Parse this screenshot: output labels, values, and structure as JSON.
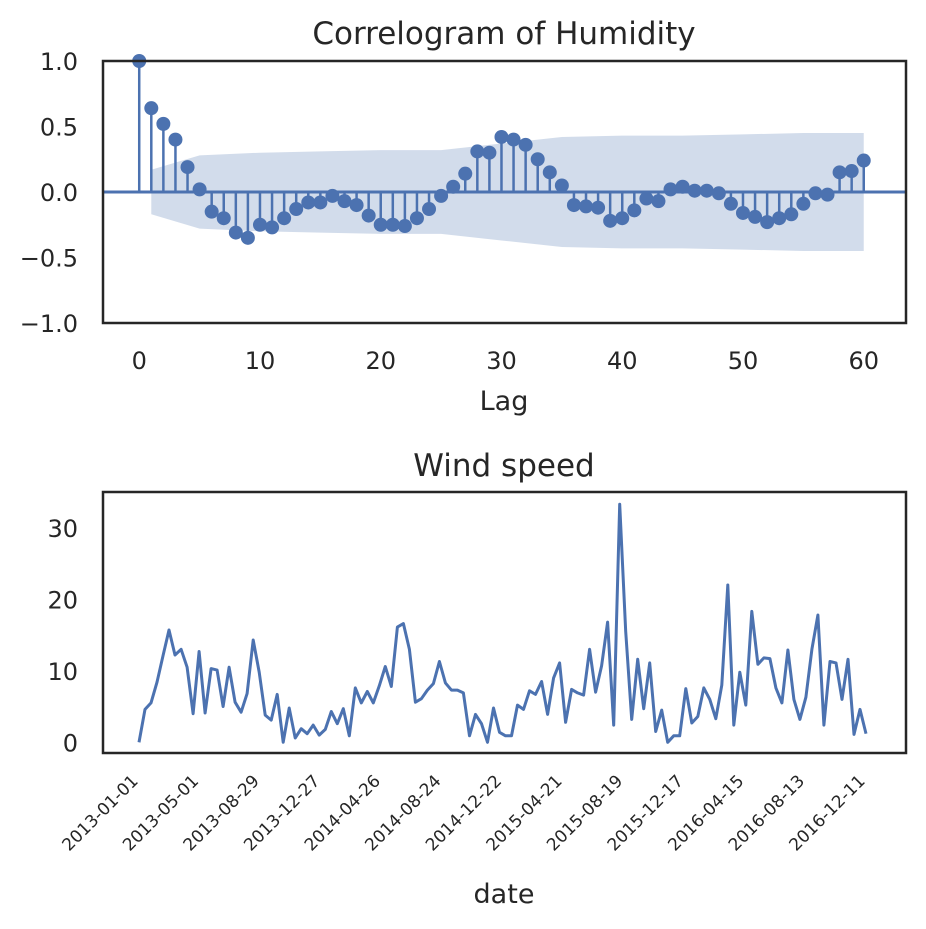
{
  "chart_data": [
    {
      "type": "stem",
      "title": "Correlogram of Humidity",
      "xlabel": "Lag",
      "ylabel": "",
      "xlim": [
        -3,
        63.5
      ],
      "ylim": [
        -1.0,
        1.0
      ],
      "xticks": [
        0,
        10,
        20,
        30,
        40,
        50,
        60
      ],
      "yticks": [
        1.0,
        0.5,
        0.0,
        -0.5,
        -1.0
      ],
      "ytick_labels": [
        "1.0",
        "0.5",
        "0.0",
        "−0.5",
        "−1.0"
      ],
      "lags": [
        0,
        1,
        2,
        3,
        4,
        5,
        6,
        7,
        8,
        9,
        10,
        11,
        12,
        13,
        14,
        15,
        16,
        17,
        18,
        19,
        20,
        21,
        22,
        23,
        24,
        25,
        26,
        27,
        28,
        29,
        30,
        31,
        32,
        33,
        34,
        35,
        36,
        37,
        38,
        39,
        40,
        41,
        42,
        43,
        44,
        45,
        46,
        47,
        48,
        49,
        50,
        51,
        52,
        53,
        54,
        55,
        56,
        57,
        58,
        59,
        60
      ],
      "values": [
        1.0,
        0.64,
        0.52,
        0.4,
        0.19,
        0.02,
        -0.15,
        -0.2,
        -0.31,
        -0.35,
        -0.25,
        -0.27,
        -0.2,
        -0.13,
        -0.08,
        -0.08,
        -0.03,
        -0.07,
        -0.1,
        -0.18,
        -0.25,
        -0.25,
        -0.26,
        -0.2,
        -0.13,
        -0.03,
        0.04,
        0.14,
        0.31,
        0.3,
        0.42,
        0.4,
        0.36,
        0.25,
        0.15,
        0.05,
        -0.1,
        -0.11,
        -0.12,
        -0.22,
        -0.2,
        -0.14,
        -0.05,
        -0.07,
        0.02,
        0.04,
        0.01,
        0.01,
        -0.01,
        -0.09,
        -0.16,
        -0.19,
        -0.23,
        -0.2,
        -0.17,
        -0.09,
        -0.01,
        -0.02,
        0.15,
        0.16,
        0.24
      ],
      "confint_lags": [
        1,
        5,
        10,
        15,
        20,
        25,
        30,
        35,
        40,
        45,
        50,
        55,
        60
      ],
      "confint_upper": [
        0.17,
        0.28,
        0.3,
        0.31,
        0.32,
        0.32,
        0.37,
        0.42,
        0.43,
        0.43,
        0.44,
        0.45,
        0.45
      ],
      "confint_lower": [
        -0.17,
        -0.28,
        -0.3,
        -0.31,
        -0.32,
        -0.32,
        -0.37,
        -0.42,
        -0.43,
        -0.43,
        -0.44,
        -0.45,
        -0.45
      ],
      "color": "#4c72b0",
      "band_color": "#4c72b0"
    },
    {
      "type": "line",
      "title": "Wind speed",
      "xlabel": "date",
      "ylabel": "",
      "ylim": [
        -1.5,
        35
      ],
      "yticks": [
        0,
        10,
        20,
        30
      ],
      "date_ticks": [
        "2013-01-01",
        "2013-05-01",
        "2013-08-29",
        "2013-12-27",
        "2014-04-26",
        "2014-08-24",
        "2014-12-22",
        "2015-04-21",
        "2015-08-19",
        "2015-12-17",
        "2016-04-15",
        "2016-08-13",
        "2016-12-11"
      ],
      "x_range_ticks": [
        0,
        12
      ],
      "values": [
        0.0,
        4.6,
        5.5,
        8.4,
        12.1,
        15.7,
        12.2,
        13.0,
        10.5,
        4.0,
        12.7,
        4.1,
        10.3,
        10.1,
        5.0,
        10.5,
        5.6,
        4.2,
        6.8,
        14.3,
        9.8,
        3.8,
        3.1,
        6.7,
        0.0,
        4.8,
        0.6,
        1.9,
        1.2,
        2.4,
        1.0,
        1.8,
        4.3,
        2.6,
        4.7,
        0.9,
        7.6,
        5.5,
        7.1,
        5.5,
        7.9,
        10.6,
        7.8,
        16.1,
        16.6,
        13.0,
        5.6,
        6.1,
        7.3,
        8.2,
        11.3,
        8.3,
        7.3,
        7.3,
        6.9,
        0.9,
        3.9,
        2.6,
        0.0,
        4.8,
        1.4,
        0.9,
        0.9,
        5.2,
        4.6,
        7.2,
        6.7,
        8.5,
        3.9,
        9.0,
        11.1,
        2.8,
        7.4,
        6.9,
        6.6,
        13.0,
        7.0,
        10.7,
        16.8,
        2.4,
        33.3,
        15.5,
        3.2,
        11.6,
        4.7,
        11.1,
        1.5,
        4.5,
        0.0,
        0.9,
        0.9,
        7.5,
        2.7,
        3.6,
        7.6,
        6.0,
        3.3,
        8.0,
        22.0,
        2.4,
        9.8,
        5.2,
        18.3,
        10.9,
        11.8,
        11.7,
        7.6,
        5.5,
        12.9,
        6.0,
        3.2,
        6.3,
        13.0,
        17.8,
        2.4,
        11.3,
        11.1,
        6.0,
        11.6,
        1.1,
        4.6,
        1.2
      ],
      "color": "#4c72b0"
    }
  ]
}
